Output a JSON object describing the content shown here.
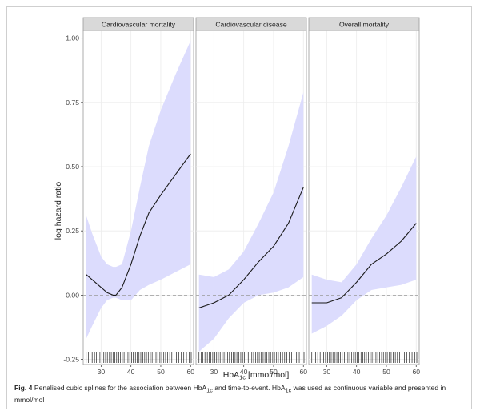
{
  "caption": {
    "label": "Fig. 4",
    "part1": "Penalised cubic splines for the association between HbA",
    "part2": " and time-to-event. HbA",
    "part3": " was used as continuous variable and presented in mmol/mol",
    "subscript": "1c"
  },
  "chart_data": {
    "type": "line",
    "ylabel": "log hazard ratio",
    "xlabel": {
      "main": "HbA",
      "sub": "1c",
      "rest": " [mmol/mol]"
    },
    "xlim": [
      24,
      61
    ],
    "ylim": [
      -0.27,
      1.03
    ],
    "xticks": [
      30,
      40,
      50,
      60
    ],
    "yticks": [
      -0.25,
      0,
      0.25,
      0.5,
      0.75,
      1.0
    ],
    "ytick_labels": [
      "-0.25",
      "0.00",
      "0.25",
      "0.50",
      "0.75",
      "1.00"
    ],
    "reference_line": 0,
    "colors": {
      "band": "#dcdcfd",
      "line": "#1a1a1a",
      "strip": "#d9d9d9",
      "ref": "#9a9a9a"
    },
    "panels": [
      {
        "title": "Cardiovascular mortality",
        "x": [
          25,
          27,
          30,
          32,
          34,
          35,
          37,
          40,
          43,
          46,
          50,
          55,
          60
        ],
        "y": [
          0.08,
          0.06,
          0.03,
          0.01,
          0.0,
          0.0,
          0.03,
          0.12,
          0.23,
          0.32,
          0.39,
          0.47,
          0.55
        ],
        "lower": [
          -0.17,
          -0.12,
          -0.05,
          -0.02,
          -0.01,
          -0.01,
          -0.02,
          -0.02,
          0.02,
          0.04,
          0.06,
          0.09,
          0.12
        ],
        "upper": [
          0.31,
          0.24,
          0.15,
          0.12,
          0.11,
          0.11,
          0.12,
          0.25,
          0.42,
          0.58,
          0.72,
          0.86,
          0.99
        ]
      },
      {
        "title": "Cardiovascular disease",
        "x": [
          25,
          30,
          35,
          40,
          45,
          50,
          55,
          60
        ],
        "y": [
          -0.05,
          -0.03,
          0.0,
          0.06,
          0.13,
          0.19,
          0.28,
          0.42
        ],
        "lower": [
          -0.22,
          -0.17,
          -0.09,
          -0.03,
          0.0,
          0.01,
          0.03,
          0.07
        ],
        "upper": [
          0.08,
          0.07,
          0.1,
          0.17,
          0.28,
          0.4,
          0.58,
          0.79
        ]
      },
      {
        "title": "Overall mortality",
        "x": [
          25,
          30,
          35,
          40,
          45,
          50,
          55,
          60
        ],
        "y": [
          -0.03,
          -0.03,
          -0.01,
          0.05,
          0.12,
          0.16,
          0.21,
          0.28
        ],
        "lower": [
          -0.15,
          -0.12,
          -0.08,
          -0.02,
          0.02,
          0.03,
          0.04,
          0.06
        ],
        "upper": [
          0.08,
          0.06,
          0.05,
          0.12,
          0.22,
          0.31,
          0.42,
          0.54
        ]
      }
    ],
    "rug": [
      25,
      25.7,
      26.3,
      27,
      27.8,
      28.4,
      29,
      29.6,
      30.3,
      30.9,
      31.5,
      32.1,
      32.8,
      33.4,
      34,
      34.6,
      35.2,
      35.9,
      36.5,
      37.1,
      37.7,
      38.3,
      39,
      39.6,
      40.2,
      40.8,
      41.5,
      42.1,
      42.7,
      43.3,
      44,
      44.6,
      45.2,
      45.8,
      46.5,
      47.1,
      47.7,
      48.4,
      49,
      49.7,
      50.3,
      51,
      51.6,
      52.3,
      53,
      53.7,
      54.4,
      55.2,
      56,
      56.8,
      57.7,
      58.6,
      59.5,
      60.2
    ]
  }
}
